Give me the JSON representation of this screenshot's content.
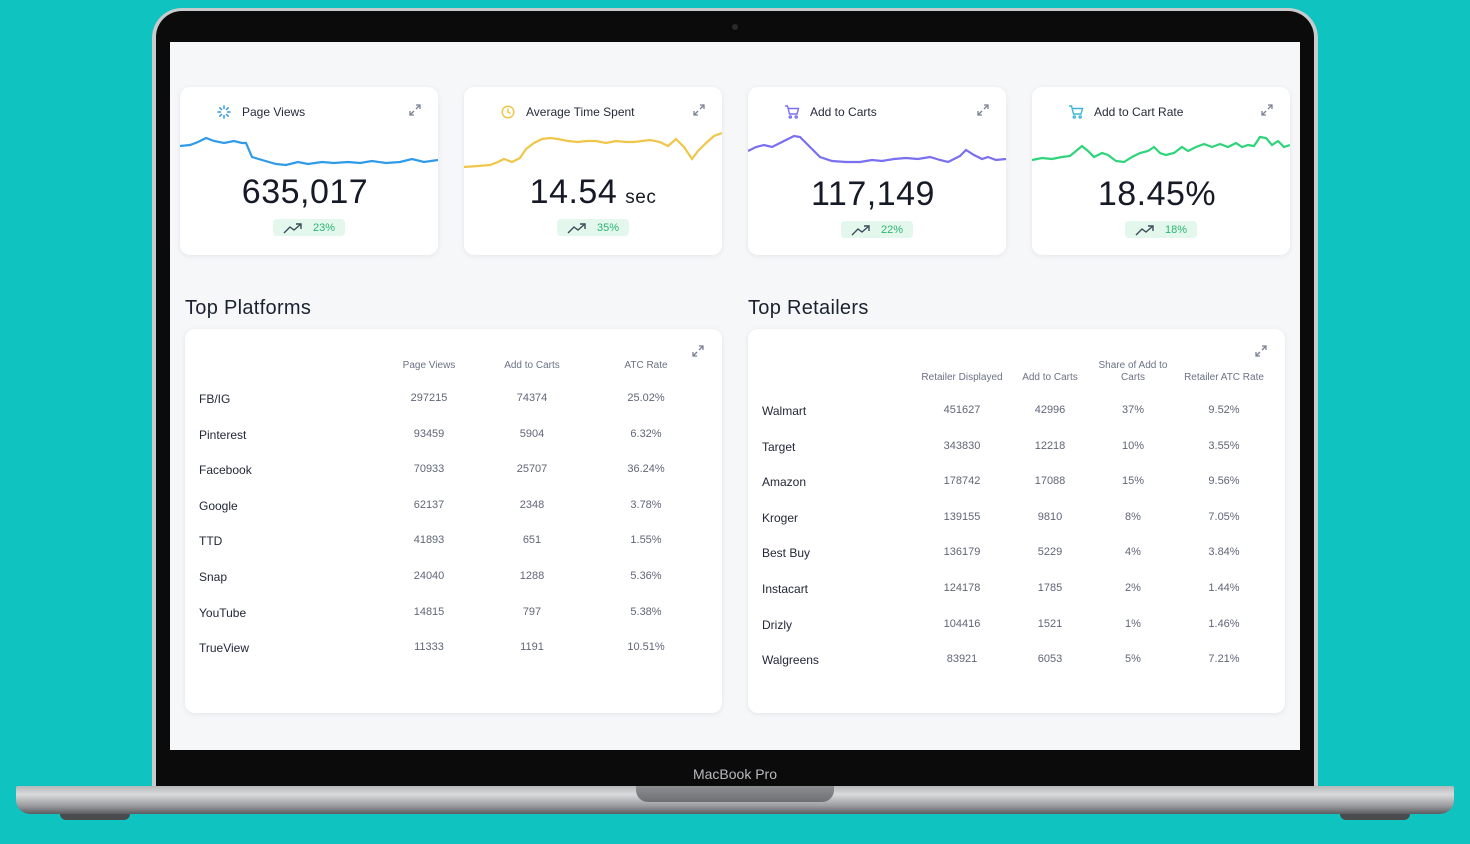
{
  "device": {
    "brand_label": "MacBook Pro"
  },
  "colors": {
    "background": "#0fc4c0",
    "positive": "#2bb673"
  },
  "kpis": [
    {
      "title": "Page Views",
      "icon": "loader-icon",
      "value": "635,017",
      "unit": "",
      "change": "23%",
      "color": "#2f9be8"
    },
    {
      "title": "Average Time Spent",
      "icon": "clock-icon",
      "value": "14.54",
      "unit": "sec",
      "change": "35%",
      "color": "#f0c64a"
    },
    {
      "title": "Add to Carts",
      "icon": "cart-icon",
      "value": "117,149",
      "unit": "",
      "change": "22%",
      "color": "#7a6ff0"
    },
    {
      "title": "Add to Cart Rate",
      "icon": "cart-icon",
      "value": "18.45%",
      "unit": "",
      "change": "18%",
      "color": "#2ed47a"
    }
  ],
  "platforms": {
    "title": "Top Platforms",
    "columns": [
      "",
      "Page Views",
      "Add to Carts",
      "ATC Rate"
    ],
    "rows": [
      [
        "FB/IG",
        "297215",
        "74374",
        "25.02%"
      ],
      [
        "Pinterest",
        "93459",
        "5904",
        "6.32%"
      ],
      [
        "Facebook",
        "70933",
        "25707",
        "36.24%"
      ],
      [
        "Google",
        "62137",
        "2348",
        "3.78%"
      ],
      [
        "TTD",
        "41893",
        "651",
        "1.55%"
      ],
      [
        "Snap",
        "24040",
        "1288",
        "5.36%"
      ],
      [
        "YouTube",
        "14815",
        "797",
        "5.38%"
      ],
      [
        "TrueView",
        "11333",
        "1191",
        "10.51%"
      ]
    ]
  },
  "retailers": {
    "title": "Top Retailers",
    "columns": [
      "",
      "Retailer Displayed",
      "Add to Carts",
      "Share of Add to Carts",
      "Retailer ATC Rate"
    ],
    "rows": [
      [
        "Walmart",
        "451627",
        "42996",
        "37%",
        "9.52%"
      ],
      [
        "Target",
        "343830",
        "12218",
        "10%",
        "3.55%"
      ],
      [
        "Amazon",
        "178742",
        "17088",
        "15%",
        "9.56%"
      ],
      [
        "Kroger",
        "139155",
        "9810",
        "8%",
        "7.05%"
      ],
      [
        "Best Buy",
        "136179",
        "5229",
        "4%",
        "3.84%"
      ],
      [
        "Instacart",
        "124178",
        "1785",
        "2%",
        "1.44%"
      ],
      [
        "Drizly",
        "104416",
        "1521",
        "1%",
        "1.46%"
      ],
      [
        "Walgreens",
        "83921",
        "6053",
        "5%",
        "7.21%"
      ]
    ]
  }
}
